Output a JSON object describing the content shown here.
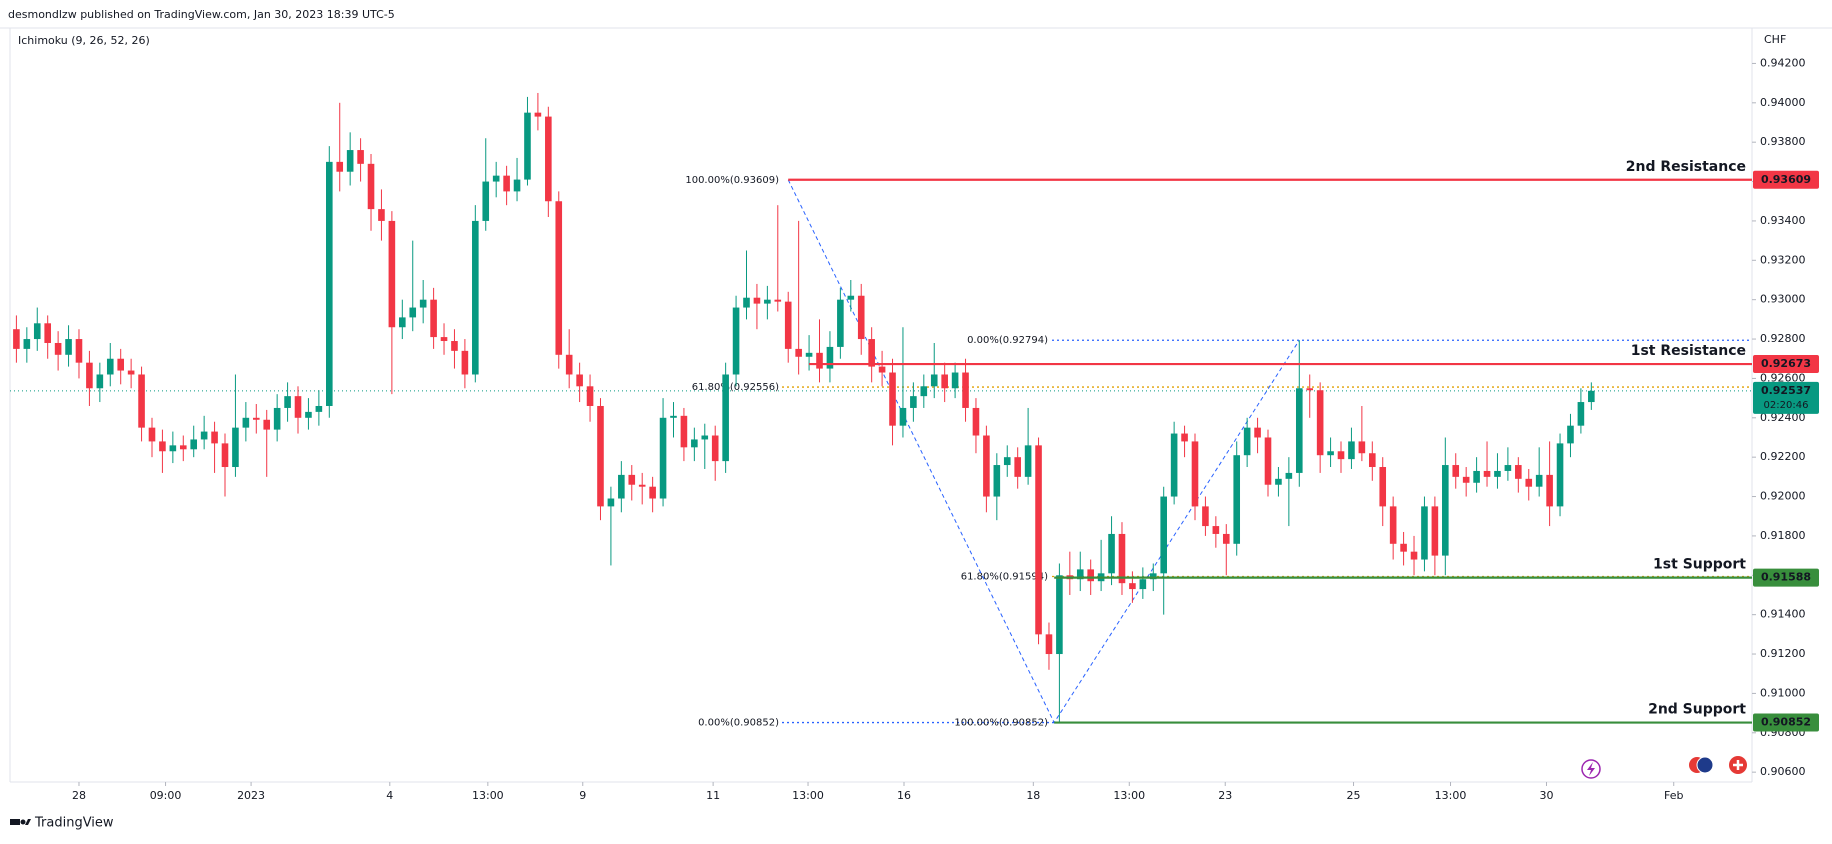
{
  "header": "desmondlzw published on TradingView.com, Jan 30, 2023 18:39 UTC-5",
  "footer": "TradingView",
  "chart_data": {
    "type": "candlestick",
    "indicator": "Ichimoku (9, 26, 52, 26)",
    "currency": "CHF",
    "up_color": "#089981",
    "down_color": "#f23645",
    "ylim": [
      0.9055,
      0.9438
    ],
    "yticks": [
      {
        "value": 0.906,
        "label": "0.90600"
      },
      {
        "value": 0.908,
        "label": "0.90800"
      },
      {
        "value": 0.91,
        "label": "0.91000"
      },
      {
        "value": 0.912,
        "label": "0.91200"
      },
      {
        "value": 0.914,
        "label": "0.91400"
      },
      {
        "value": 0.916,
        "label": "0.91600"
      },
      {
        "value": 0.918,
        "label": "0.91800"
      },
      {
        "value": 0.92,
        "label": "0.92000"
      },
      {
        "value": 0.922,
        "label": "0.92200"
      },
      {
        "value": 0.924,
        "label": "0.92400"
      },
      {
        "value": 0.926,
        "label": "0.92600"
      },
      {
        "value": 0.928,
        "label": "0.92800"
      },
      {
        "value": 0.93,
        "label": "0.93000"
      },
      {
        "value": 0.932,
        "label": "0.93200"
      },
      {
        "value": 0.934,
        "label": "0.93400"
      },
      {
        "value": 0.936,
        "label": "0.93600"
      },
      {
        "value": 0.938,
        "label": "0.93800"
      },
      {
        "value": 0.94,
        "label": "0.94000"
      },
      {
        "value": 0.942,
        "label": "0.94200"
      }
    ],
    "xticks": [
      {
        "value": 6,
        "label": "28"
      },
      {
        "value": 14.3,
        "label": "09:00"
      },
      {
        "value": 22.5,
        "label": "2023"
      },
      {
        "value": 35.8,
        "label": "4"
      },
      {
        "value": 45.2,
        "label": "13:00"
      },
      {
        "value": 54.3,
        "label": "9"
      },
      {
        "value": 66.8,
        "label": "11"
      },
      {
        "value": 75.9,
        "label": "13:00"
      },
      {
        "value": 85.1,
        "label": "16"
      },
      {
        "value": 97.5,
        "label": "18"
      },
      {
        "value": 106.7,
        "label": "13:00"
      },
      {
        "value": 115.9,
        "label": "23"
      },
      {
        "value": 128.2,
        "label": "25"
      },
      {
        "value": 137.5,
        "label": "13:00"
      },
      {
        "value": 146.7,
        "label": "30"
      },
      {
        "value": 158.9,
        "label": "Feb"
      }
    ],
    "ohlc": [
      [
        0.9285,
        0.9292,
        0.9268,
        0.9275
      ],
      [
        0.9275,
        0.9286,
        0.9268,
        0.928
      ],
      [
        0.928,
        0.9296,
        0.9274,
        0.9288
      ],
      [
        0.9288,
        0.9292,
        0.927,
        0.9278
      ],
      [
        0.9278,
        0.9284,
        0.9264,
        0.9272
      ],
      [
        0.9272,
        0.9287,
        0.9266,
        0.928
      ],
      [
        0.928,
        0.9285,
        0.926,
        0.9268
      ],
      [
        0.9268,
        0.9274,
        0.9246,
        0.9255
      ],
      [
        0.9255,
        0.9268,
        0.9248,
        0.9262
      ],
      [
        0.9262,
        0.9278,
        0.9256,
        0.927
      ],
      [
        0.927,
        0.9275,
        0.9257,
        0.9264
      ],
      [
        0.9264,
        0.927,
        0.9255,
        0.9262
      ],
      [
        0.9262,
        0.9266,
        0.9228,
        0.9235
      ],
      [
        0.9235,
        0.924,
        0.922,
        0.9228
      ],
      [
        0.9228,
        0.9234,
        0.9212,
        0.9223
      ],
      [
        0.9223,
        0.9233,
        0.9217,
        0.9226
      ],
      [
        0.9226,
        0.9231,
        0.9218,
        0.9224
      ],
      [
        0.9224,
        0.9236,
        0.922,
        0.9229
      ],
      [
        0.9229,
        0.9241,
        0.9224,
        0.9233
      ],
      [
        0.9233,
        0.9238,
        0.9212,
        0.9227
      ],
      [
        0.9227,
        0.9232,
        0.92,
        0.9215
      ],
      [
        0.9215,
        0.9262,
        0.921,
        0.9235
      ],
      [
        0.9235,
        0.9248,
        0.9228,
        0.924
      ],
      [
        0.924,
        0.9247,
        0.9232,
        0.9239
      ],
      [
        0.9239,
        0.9244,
        0.921,
        0.9234
      ],
      [
        0.9234,
        0.9252,
        0.9228,
        0.9245
      ],
      [
        0.9245,
        0.9258,
        0.9238,
        0.9251
      ],
      [
        0.9251,
        0.9256,
        0.9232,
        0.924
      ],
      [
        0.924,
        0.925,
        0.9234,
        0.9243
      ],
      [
        0.9243,
        0.9254,
        0.9236,
        0.9246
      ],
      [
        0.9246,
        0.9378,
        0.924,
        0.937
      ],
      [
        0.937,
        0.94,
        0.9355,
        0.9365
      ],
      [
        0.9365,
        0.9385,
        0.9358,
        0.9376
      ],
      [
        0.9376,
        0.9382,
        0.936,
        0.9369
      ],
      [
        0.9369,
        0.9374,
        0.9335,
        0.9346
      ],
      [
        0.9346,
        0.9356,
        0.933,
        0.934
      ],
      [
        0.934,
        0.9345,
        0.9252,
        0.9286
      ],
      [
        0.9286,
        0.93,
        0.928,
        0.9291
      ],
      [
        0.9291,
        0.933,
        0.9284,
        0.9296
      ],
      [
        0.9296,
        0.931,
        0.9288,
        0.93
      ],
      [
        0.93,
        0.9306,
        0.9275,
        0.9281
      ],
      [
        0.9281,
        0.9288,
        0.9272,
        0.9279
      ],
      [
        0.9279,
        0.9285,
        0.9265,
        0.9274
      ],
      [
        0.9274,
        0.928,
        0.9255,
        0.9262
      ],
      [
        0.9262,
        0.9348,
        0.9258,
        0.934
      ],
      [
        0.934,
        0.9382,
        0.9335,
        0.936
      ],
      [
        0.936,
        0.937,
        0.9352,
        0.9363
      ],
      [
        0.9363,
        0.9368,
        0.9348,
        0.9355
      ],
      [
        0.9355,
        0.9372,
        0.935,
        0.9361
      ],
      [
        0.9361,
        0.9403,
        0.9358,
        0.9395
      ],
      [
        0.9395,
        0.9405,
        0.9386,
        0.9393
      ],
      [
        0.9393,
        0.9398,
        0.9342,
        0.935
      ],
      [
        0.935,
        0.9355,
        0.9265,
        0.9272
      ],
      [
        0.9272,
        0.9285,
        0.9255,
        0.9262
      ],
      [
        0.9262,
        0.9268,
        0.9248,
        0.9256
      ],
      [
        0.9256,
        0.9262,
        0.9238,
        0.9246
      ],
      [
        0.9246,
        0.925,
        0.9188,
        0.9195
      ],
      [
        0.9195,
        0.9205,
        0.9165,
        0.9199
      ],
      [
        0.9199,
        0.9218,
        0.9192,
        0.9211
      ],
      [
        0.9211,
        0.9216,
        0.9198,
        0.9206
      ],
      [
        0.9206,
        0.9212,
        0.9196,
        0.9205
      ],
      [
        0.9205,
        0.921,
        0.9192,
        0.9199
      ],
      [
        0.9199,
        0.925,
        0.9195,
        0.924
      ],
      [
        0.924,
        0.9248,
        0.923,
        0.9241
      ],
      [
        0.9241,
        0.9245,
        0.9218,
        0.9225
      ],
      [
        0.9225,
        0.9235,
        0.9218,
        0.9229
      ],
      [
        0.9229,
        0.9237,
        0.9214,
        0.9231
      ],
      [
        0.9231,
        0.9236,
        0.9208,
        0.9218
      ],
      [
        0.9218,
        0.9268,
        0.9212,
        0.9262
      ],
      [
        0.9262,
        0.9302,
        0.9256,
        0.9296
      ],
      [
        0.9296,
        0.9325,
        0.929,
        0.9301
      ],
      [
        0.9301,
        0.9308,
        0.9285,
        0.9298
      ],
      [
        0.9298,
        0.9307,
        0.929,
        0.93
      ],
      [
        0.93,
        0.9348,
        0.9294,
        0.9299
      ],
      [
        0.9299,
        0.9304,
        0.9268,
        0.9275
      ],
      [
        0.9275,
        0.934,
        0.9262,
        0.9271
      ],
      [
        0.9271,
        0.9282,
        0.9264,
        0.9273
      ],
      [
        0.9273,
        0.929,
        0.9258,
        0.9265
      ],
      [
        0.9265,
        0.9284,
        0.9258,
        0.9276
      ],
      [
        0.9276,
        0.9306,
        0.927,
        0.93
      ],
      [
        0.93,
        0.931,
        0.9294,
        0.9302
      ],
      [
        0.9302,
        0.9308,
        0.9272,
        0.928
      ],
      [
        0.928,
        0.9286,
        0.9258,
        0.9266
      ],
      [
        0.9266,
        0.9274,
        0.9256,
        0.9263
      ],
      [
        0.9263,
        0.927,
        0.9226,
        0.9236
      ],
      [
        0.9236,
        0.9286,
        0.923,
        0.9245
      ],
      [
        0.9245,
        0.9258,
        0.9238,
        0.9251
      ],
      [
        0.9251,
        0.9262,
        0.9245,
        0.9256
      ],
      [
        0.9256,
        0.9278,
        0.925,
        0.9262
      ],
      [
        0.9262,
        0.9268,
        0.9248,
        0.9255
      ],
      [
        0.9255,
        0.9268,
        0.925,
        0.9263
      ],
      [
        0.9263,
        0.927,
        0.9238,
        0.9245
      ],
      [
        0.9245,
        0.925,
        0.9222,
        0.9231
      ],
      [
        0.9231,
        0.9236,
        0.9192,
        0.92
      ],
      [
        0.92,
        0.9222,
        0.9188,
        0.9216
      ],
      [
        0.9216,
        0.9226,
        0.921,
        0.922
      ],
      [
        0.922,
        0.9225,
        0.9204,
        0.921
      ],
      [
        0.921,
        0.9245,
        0.9206,
        0.9226
      ],
      [
        0.9226,
        0.923,
        0.9125,
        0.913
      ],
      [
        0.913,
        0.9136,
        0.9112,
        0.912
      ],
      [
        0.912,
        0.9166,
        0.90852,
        0.916
      ],
      [
        0.916,
        0.9172,
        0.915,
        0.9158
      ],
      [
        0.9158,
        0.9172,
        0.9152,
        0.9163
      ],
      [
        0.9163,
        0.9168,
        0.915,
        0.9157
      ],
      [
        0.9157,
        0.9178,
        0.9152,
        0.9161
      ],
      [
        0.9161,
        0.919,
        0.9155,
        0.9181
      ],
      [
        0.9181,
        0.9187,
        0.915,
        0.9156
      ],
      [
        0.9156,
        0.9162,
        0.9146,
        0.9153
      ],
      [
        0.9153,
        0.9164,
        0.9148,
        0.9158
      ],
      [
        0.9158,
        0.9166,
        0.9152,
        0.9161
      ],
      [
        0.9161,
        0.9205,
        0.914,
        0.92
      ],
      [
        0.92,
        0.9238,
        0.9196,
        0.9232
      ],
      [
        0.9232,
        0.9236,
        0.922,
        0.9228
      ],
      [
        0.9228,
        0.9232,
        0.9188,
        0.9195
      ],
      [
        0.9195,
        0.92,
        0.918,
        0.9185
      ],
      [
        0.9185,
        0.919,
        0.9174,
        0.9181
      ],
      [
        0.9181,
        0.9186,
        0.916,
        0.9176
      ],
      [
        0.9176,
        0.9228,
        0.917,
        0.9221
      ],
      [
        0.9221,
        0.924,
        0.9215,
        0.9235
      ],
      [
        0.9235,
        0.924,
        0.9222,
        0.923
      ],
      [
        0.923,
        0.9234,
        0.92,
        0.9206
      ],
      [
        0.9206,
        0.9215,
        0.92,
        0.9209
      ],
      [
        0.9209,
        0.922,
        0.9185,
        0.9212
      ],
      [
        0.9212,
        0.92794,
        0.9205,
        0.9255
      ],
      [
        0.9255,
        0.9262,
        0.924,
        0.9254
      ],
      [
        0.9254,
        0.9258,
        0.9212,
        0.9221
      ],
      [
        0.9221,
        0.923,
        0.9215,
        0.9223
      ],
      [
        0.9223,
        0.9228,
        0.9212,
        0.9219
      ],
      [
        0.9219,
        0.9235,
        0.9214,
        0.9228
      ],
      [
        0.9228,
        0.9246,
        0.9218,
        0.9222
      ],
      [
        0.9222,
        0.9228,
        0.9208,
        0.9215
      ],
      [
        0.9215,
        0.922,
        0.9185,
        0.9195
      ],
      [
        0.9195,
        0.92,
        0.9168,
        0.9176
      ],
      [
        0.9176,
        0.9182,
        0.9165,
        0.9172
      ],
      [
        0.9172,
        0.918,
        0.916,
        0.9168
      ],
      [
        0.9168,
        0.92,
        0.9162,
        0.9195
      ],
      [
        0.9195,
        0.92,
        0.916,
        0.917
      ],
      [
        0.917,
        0.923,
        0.916,
        0.9216
      ],
      [
        0.9216,
        0.9222,
        0.9204,
        0.921
      ],
      [
        0.921,
        0.9215,
        0.92,
        0.9207
      ],
      [
        0.9207,
        0.922,
        0.9202,
        0.9213
      ],
      [
        0.9213,
        0.9228,
        0.9205,
        0.921
      ],
      [
        0.921,
        0.9222,
        0.9204,
        0.9213
      ],
      [
        0.9213,
        0.9225,
        0.9208,
        0.9216
      ],
      [
        0.9216,
        0.922,
        0.9202,
        0.9209
      ],
      [
        0.9209,
        0.9214,
        0.9198,
        0.9205
      ],
      [
        0.9205,
        0.9225,
        0.92,
        0.9211
      ],
      [
        0.9211,
        0.9228,
        0.9185,
        0.9195
      ],
      [
        0.9195,
        0.9232,
        0.919,
        0.9227
      ],
      [
        0.9227,
        0.9242,
        0.922,
        0.9236
      ],
      [
        0.9236,
        0.9255,
        0.9232,
        0.9248
      ],
      [
        0.9248,
        0.9258,
        0.9244,
        0.92537
      ]
    ],
    "levels": [
      {
        "name": "2nd Resistance",
        "value": 0.93609,
        "label": "0.93609",
        "color": "#f23645"
      },
      {
        "name": "1st Resistance",
        "value": 0.92673,
        "label": "0.92673",
        "color": "#f23645"
      },
      {
        "name": "1st Support",
        "value": 0.91588,
        "label": "0.91588",
        "color": "#388e3c"
      },
      {
        "name": "2nd Support",
        "value": 0.90852,
        "label": "0.90852",
        "color": "#388e3c"
      }
    ],
    "current_price": {
      "value": 0.92537,
      "label": "0.92537",
      "countdown": "02:20:46",
      "color": "#089981"
    },
    "fibs": [
      {
        "levels": [
          {
            "label": "100.00%(0.93609)",
            "value": 0.93609,
            "color": "#2962ff"
          },
          {
            "label": "61.80%(0.92556)",
            "value": 0.92556,
            "color": "#e0a000"
          },
          {
            "label": "0.00%(0.90852)",
            "value": 0.90852,
            "color": "#2962ff"
          }
        ]
      },
      {
        "levels": [
          {
            "label": "0.00%(0.92794)",
            "value": 0.92794,
            "color": "#2962ff"
          },
          {
            "label": "61.80%(0.91594)",
            "value": 0.91594,
            "color": "#e0a000"
          },
          {
            "label": "100.00%(0.90852)",
            "value": 0.90852,
            "color": "#2962ff"
          }
        ]
      }
    ]
  }
}
